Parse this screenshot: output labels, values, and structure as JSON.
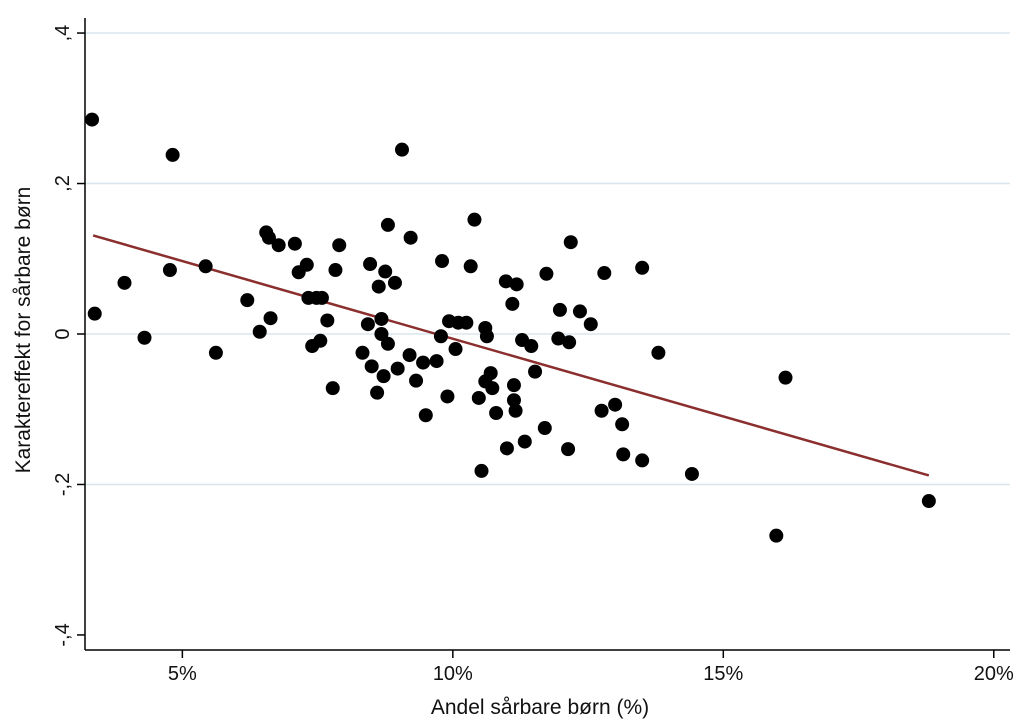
{
  "chart_data": {
    "type": "scatter",
    "title": "",
    "xlabel": "Andel sårbare børn (%)",
    "ylabel": "Karaktereffekt for sårbare børn",
    "xlim": [
      3.2,
      20.3
    ],
    "ylim": [
      -0.42,
      0.42
    ],
    "x_ticks": [
      5,
      10,
      15,
      20
    ],
    "x_tick_labels": [
      "5%",
      "10%",
      "15%",
      "20%"
    ],
    "y_ticks": [
      -0.4,
      -0.2,
      0,
      0.2,
      0.4
    ],
    "y_tick_labels": [
      "-,4",
      "-,2",
      "0",
      ",2",
      ",4"
    ],
    "grid": true,
    "points": [
      [
        3.33,
        0.285
      ],
      [
        3.38,
        0.027
      ],
      [
        3.93,
        0.068
      ],
      [
        4.3,
        -0.005
      ],
      [
        4.77,
        0.085
      ],
      [
        4.82,
        0.238
      ],
      [
        5.43,
        0.09
      ],
      [
        5.62,
        -0.025
      ],
      [
        6.2,
        0.045
      ],
      [
        6.43,
        0.003
      ],
      [
        6.55,
        0.135
      ],
      [
        6.6,
        0.128
      ],
      [
        6.63,
        0.021
      ],
      [
        6.78,
        0.118
      ],
      [
        7.08,
        0.12
      ],
      [
        7.15,
        0.082
      ],
      [
        7.3,
        0.092
      ],
      [
        7.33,
        0.048
      ],
      [
        7.4,
        -0.016
      ],
      [
        7.48,
        0.048
      ],
      [
        7.55,
        -0.009
      ],
      [
        7.58,
        0.048
      ],
      [
        7.68,
        0.018
      ],
      [
        7.78,
        -0.072
      ],
      [
        7.83,
        0.085
      ],
      [
        7.9,
        0.118
      ],
      [
        8.33,
        -0.025
      ],
      [
        8.43,
        0.013
      ],
      [
        8.47,
        0.093
      ],
      [
        8.5,
        -0.043
      ],
      [
        8.6,
        -0.078
      ],
      [
        8.63,
        0.063
      ],
      [
        8.68,
        0.02
      ],
      [
        8.68,
        0
      ],
      [
        8.72,
        -0.056
      ],
      [
        8.75,
        0.083
      ],
      [
        8.8,
        0.145
      ],
      [
        8.8,
        -0.013
      ],
      [
        8.93,
        0.068
      ],
      [
        8.98,
        -0.046
      ],
      [
        9.06,
        0.245
      ],
      [
        9.2,
        -0.028
      ],
      [
        9.22,
        0.128
      ],
      [
        9.32,
        -0.062
      ],
      [
        9.45,
        -0.038
      ],
      [
        9.5,
        -0.108
      ],
      [
        9.7,
        -0.036
      ],
      [
        9.78,
        -0.003
      ],
      [
        9.8,
        0.097
      ],
      [
        9.9,
        -0.083
      ],
      [
        9.93,
        0.017
      ],
      [
        10.05,
        -0.02
      ],
      [
        10.1,
        0.015
      ],
      [
        10.25,
        0.015
      ],
      [
        10.33,
        0.09
      ],
      [
        10.4,
        0.152
      ],
      [
        10.48,
        -0.085
      ],
      [
        10.53,
        -0.182
      ],
      [
        10.6,
        -0.063
      ],
      [
        10.6,
        0.008
      ],
      [
        10.63,
        -0.003
      ],
      [
        10.7,
        -0.052
      ],
      [
        10.73,
        -0.072
      ],
      [
        10.8,
        -0.105
      ],
      [
        10.98,
        0.07
      ],
      [
        11.0,
        -0.152
      ],
      [
        11.1,
        0.04
      ],
      [
        11.13,
        -0.068
      ],
      [
        11.13,
        -0.088
      ],
      [
        11.16,
        -0.102
      ],
      [
        11.18,
        0.066
      ],
      [
        11.28,
        -0.008
      ],
      [
        11.33,
        -0.143
      ],
      [
        11.45,
        -0.016
      ],
      [
        11.52,
        -0.05
      ],
      [
        11.7,
        -0.125
      ],
      [
        11.73,
        0.08
      ],
      [
        11.95,
        -0.006
      ],
      [
        11.98,
        0.032
      ],
      [
        12.13,
        -0.153
      ],
      [
        12.15,
        -0.011
      ],
      [
        12.18,
        0.122
      ],
      [
        12.35,
        0.03
      ],
      [
        12.55,
        0.013
      ],
      [
        12.75,
        -0.102
      ],
      [
        12.8,
        0.081
      ],
      [
        13.0,
        -0.094
      ],
      [
        13.13,
        -0.12
      ],
      [
        13.15,
        -0.16
      ],
      [
        13.5,
        -0.168
      ],
      [
        13.5,
        0.088
      ],
      [
        13.8,
        -0.025
      ],
      [
        14.42,
        -0.186
      ],
      [
        15.98,
        -0.268
      ],
      [
        16.15,
        -0.058
      ],
      [
        18.8,
        -0.222
      ]
    ],
    "fit_line": {
      "x": [
        3.35,
        18.8
      ],
      "y": [
        0.131,
        -0.188
      ]
    },
    "colors": {
      "points": "#000000",
      "fit_line": "#8b2e2e",
      "grid": "#d8e6ee",
      "axis": "#000000"
    }
  }
}
